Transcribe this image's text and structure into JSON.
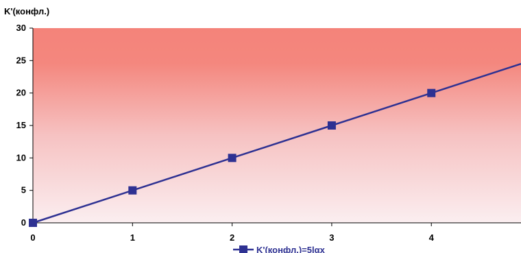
{
  "chart_data": {
    "type": "line",
    "title": "",
    "ylabel": "K'(конфл.)",
    "xlabel": "",
    "x": [
      0,
      1,
      2,
      3,
      4
    ],
    "x_ticks": [
      "0",
      "1",
      "2",
      "3",
      "4"
    ],
    "y_ticks": [
      "0",
      "5",
      "10",
      "15",
      "20",
      "25",
      "30"
    ],
    "xlim": [
      0,
      4.9
    ],
    "ylim": [
      0,
      30
    ],
    "series": [
      {
        "name": "K'(конфл.)=5lαx",
        "values": [
          0,
          5,
          10,
          15,
          20
        ],
        "line_extends_to": [
          4.9,
          24.5
        ]
      }
    ],
    "line_color": "#2e3192",
    "marker": "square",
    "background_gradient": [
      "#f4837a",
      "#fbeef0"
    ],
    "legend_position": "bottom",
    "grid": false
  }
}
